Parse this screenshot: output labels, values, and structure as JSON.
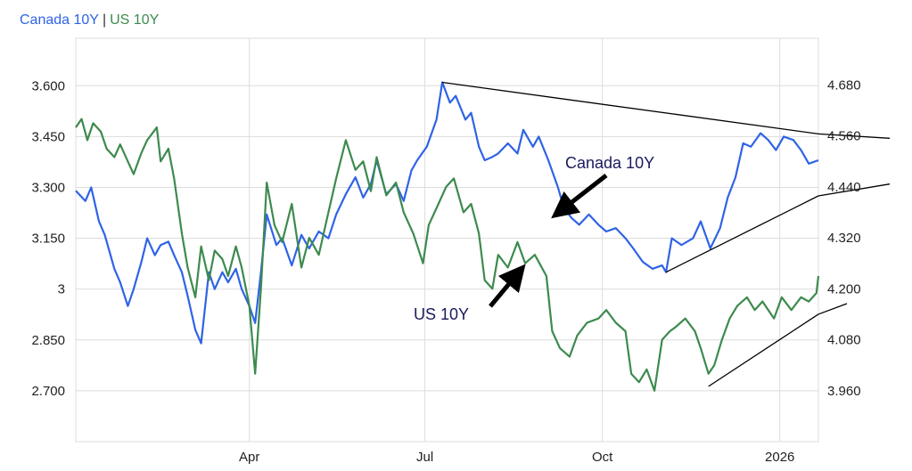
{
  "legend": {
    "canada_label": "Canada 10Y",
    "separator": "|",
    "us_label": "US 10Y"
  },
  "colors": {
    "canada": "#2f63e6",
    "us": "#3d8a4e",
    "grid": "#dcdcdc",
    "trend": "#000000"
  },
  "annotations": {
    "canada": "Canada 10Y",
    "us": "US 10Y"
  },
  "chart_data": {
    "type": "line",
    "x_ticks": [
      {
        "label": "Apr",
        "x": "2025-04-01"
      },
      {
        "label": "Jul",
        "x": "2025-07-01"
      },
      {
        "label": "Oct",
        "x": "2025-10-01"
      },
      {
        "label": "2026",
        "x": "2026-01-01"
      }
    ],
    "x_range": [
      "2025-01-01",
      "2026-01-21"
    ],
    "y_left_ticks": [
      "2.700",
      "2.850",
      "3",
      "3.150",
      "3.300",
      "3.450",
      "3.600"
    ],
    "y_left_range": [
      2.55,
      3.74
    ],
    "y_right_ticks": [
      "3.960",
      "4.080",
      "4.200",
      "4.320",
      "4.440",
      "4.560",
      "4.680"
    ],
    "y_right_range": [
      3.84,
      4.79
    ],
    "grid": true,
    "series": [
      {
        "name": "Canada 10Y",
        "axis": "left",
        "points": [
          [
            "2025-01-01",
            3.29
          ],
          [
            "2025-01-06",
            3.26
          ],
          [
            "2025-01-09",
            3.3
          ],
          [
            "2025-01-13",
            3.2
          ],
          [
            "2025-01-16",
            3.16
          ],
          [
            "2025-01-21",
            3.06
          ],
          [
            "2025-01-24",
            3.02
          ],
          [
            "2025-01-28",
            2.95
          ],
          [
            "2025-01-31",
            3.0
          ],
          [
            "2025-02-04",
            3.08
          ],
          [
            "2025-02-07",
            3.15
          ],
          [
            "2025-02-11",
            3.1
          ],
          [
            "2025-02-14",
            3.13
          ],
          [
            "2025-02-18",
            3.14
          ],
          [
            "2025-02-21",
            3.1
          ],
          [
            "2025-02-25",
            3.05
          ],
          [
            "2025-02-28",
            2.98
          ],
          [
            "2025-03-04",
            2.88
          ],
          [
            "2025-03-07",
            2.84
          ],
          [
            "2025-03-11",
            3.05
          ],
          [
            "2025-03-14",
            3.0
          ],
          [
            "2025-03-18",
            3.05
          ],
          [
            "2025-03-21",
            3.02
          ],
          [
            "2025-03-25",
            3.06
          ],
          [
            "2025-03-28",
            3.0
          ],
          [
            "2025-04-01",
            2.95
          ],
          [
            "2025-04-04",
            2.9
          ],
          [
            "2025-04-07",
            3.05
          ],
          [
            "2025-04-10",
            3.22
          ],
          [
            "2025-04-15",
            3.13
          ],
          [
            "2025-04-18",
            3.15
          ],
          [
            "2025-04-23",
            3.07
          ],
          [
            "2025-04-28",
            3.16
          ],
          [
            "2025-05-02",
            3.12
          ],
          [
            "2025-05-07",
            3.17
          ],
          [
            "2025-05-12",
            3.15
          ],
          [
            "2025-05-16",
            3.22
          ],
          [
            "2025-05-21",
            3.28
          ],
          [
            "2025-05-26",
            3.33
          ],
          [
            "2025-05-30",
            3.27
          ],
          [
            "2025-06-03",
            3.31
          ],
          [
            "2025-06-06",
            3.38
          ],
          [
            "2025-06-11",
            3.28
          ],
          [
            "2025-06-16",
            3.31
          ],
          [
            "2025-06-20",
            3.26
          ],
          [
            "2025-06-24",
            3.35
          ],
          [
            "2025-06-27",
            3.38
          ],
          [
            "2025-07-02",
            3.42
          ],
          [
            "2025-07-07",
            3.5
          ],
          [
            "2025-07-10",
            3.61
          ],
          [
            "2025-07-14",
            3.55
          ],
          [
            "2025-07-17",
            3.57
          ],
          [
            "2025-07-22",
            3.5
          ],
          [
            "2025-07-25",
            3.52
          ],
          [
            "2025-07-29",
            3.42
          ],
          [
            "2025-08-01",
            3.38
          ],
          [
            "2025-08-05",
            3.39
          ],
          [
            "2025-08-08",
            3.4
          ],
          [
            "2025-08-13",
            3.43
          ],
          [
            "2025-08-18",
            3.4
          ],
          [
            "2025-08-21",
            3.47
          ],
          [
            "2025-08-26",
            3.42
          ],
          [
            "2025-08-29",
            3.45
          ],
          [
            "2025-09-03",
            3.38
          ],
          [
            "2025-09-08",
            3.3
          ],
          [
            "2025-09-11",
            3.24
          ],
          [
            "2025-09-15",
            3.21
          ],
          [
            "2025-09-19",
            3.19
          ],
          [
            "2025-09-24",
            3.22
          ],
          [
            "2025-09-29",
            3.19
          ],
          [
            "2025-10-03",
            3.17
          ],
          [
            "2025-10-08",
            3.18
          ],
          [
            "2025-10-13",
            3.15
          ],
          [
            "2025-10-17",
            3.12
          ],
          [
            "2025-10-22",
            3.08
          ],
          [
            "2025-10-27",
            3.06
          ],
          [
            "2025-11-01",
            3.07
          ],
          [
            "2025-11-03",
            3.05
          ],
          [
            "2025-11-06",
            3.15
          ],
          [
            "2025-11-11",
            3.13
          ],
          [
            "2025-11-17",
            3.15
          ],
          [
            "2025-11-21",
            3.2
          ],
          [
            "2025-11-26",
            3.12
          ],
          [
            "2025-12-01",
            3.18
          ],
          [
            "2025-12-05",
            3.27
          ],
          [
            "2025-12-09",
            3.33
          ],
          [
            "2025-12-13",
            3.43
          ],
          [
            "2025-12-17",
            3.42
          ],
          [
            "2025-12-22",
            3.46
          ],
          [
            "2025-12-26",
            3.44
          ],
          [
            "2025-12-30",
            3.41
          ],
          [
            "2026-01-03",
            3.45
          ],
          [
            "2026-01-08",
            3.44
          ],
          [
            "2026-01-12",
            3.41
          ],
          [
            "2026-01-16",
            3.37
          ],
          [
            "2026-01-21",
            3.38
          ]
        ]
      },
      {
        "name": "US 10Y",
        "axis": "right",
        "points": [
          [
            "2025-01-01",
            4.58
          ],
          [
            "2025-01-04",
            4.6
          ],
          [
            "2025-01-07",
            4.55
          ],
          [
            "2025-01-10",
            4.59
          ],
          [
            "2025-01-14",
            4.57
          ],
          [
            "2025-01-17",
            4.53
          ],
          [
            "2025-01-21",
            4.51
          ],
          [
            "2025-01-24",
            4.54
          ],
          [
            "2025-01-28",
            4.5
          ],
          [
            "2025-01-31",
            4.47
          ],
          [
            "2025-02-04",
            4.52
          ],
          [
            "2025-02-07",
            4.55
          ],
          [
            "2025-02-12",
            4.58
          ],
          [
            "2025-02-14",
            4.5
          ],
          [
            "2025-02-18",
            4.53
          ],
          [
            "2025-02-21",
            4.46
          ],
          [
            "2025-02-25",
            4.33
          ],
          [
            "2025-02-28",
            4.25
          ],
          [
            "2025-03-04",
            4.18
          ],
          [
            "2025-03-07",
            4.3
          ],
          [
            "2025-03-11",
            4.22
          ],
          [
            "2025-03-14",
            4.29
          ],
          [
            "2025-03-18",
            4.27
          ],
          [
            "2025-03-21",
            4.23
          ],
          [
            "2025-03-25",
            4.3
          ],
          [
            "2025-03-28",
            4.25
          ],
          [
            "2025-04-01",
            4.16
          ],
          [
            "2025-04-04",
            4.0
          ],
          [
            "2025-04-07",
            4.2
          ],
          [
            "2025-04-10",
            4.45
          ],
          [
            "2025-04-14",
            4.35
          ],
          [
            "2025-04-18",
            4.31
          ],
          [
            "2025-04-23",
            4.4
          ],
          [
            "2025-04-28",
            4.25
          ],
          [
            "2025-05-02",
            4.32
          ],
          [
            "2025-05-07",
            4.28
          ],
          [
            "2025-05-12",
            4.38
          ],
          [
            "2025-05-16",
            4.46
          ],
          [
            "2025-05-21",
            4.55
          ],
          [
            "2025-05-26",
            4.48
          ],
          [
            "2025-05-30",
            4.5
          ],
          [
            "2025-06-03",
            4.43
          ],
          [
            "2025-06-06",
            4.51
          ],
          [
            "2025-06-11",
            4.42
          ],
          [
            "2025-06-16",
            4.45
          ],
          [
            "2025-06-20",
            4.38
          ],
          [
            "2025-06-25",
            4.33
          ],
          [
            "2025-06-30",
            4.26
          ],
          [
            "2025-07-03",
            4.35
          ],
          [
            "2025-07-08",
            4.4
          ],
          [
            "2025-07-12",
            4.44
          ],
          [
            "2025-07-16",
            4.46
          ],
          [
            "2025-07-21",
            4.38
          ],
          [
            "2025-07-25",
            4.4
          ],
          [
            "2025-07-29",
            4.33
          ],
          [
            "2025-08-01",
            4.22
          ],
          [
            "2025-08-05",
            4.2
          ],
          [
            "2025-08-08",
            4.28
          ],
          [
            "2025-08-13",
            4.25
          ],
          [
            "2025-08-18",
            4.31
          ],
          [
            "2025-08-22",
            4.26
          ],
          [
            "2025-08-27",
            4.28
          ],
          [
            "2025-09-02",
            4.23
          ],
          [
            "2025-09-05",
            4.1
          ],
          [
            "2025-09-09",
            4.06
          ],
          [
            "2025-09-14",
            4.04
          ],
          [
            "2025-09-18",
            4.09
          ],
          [
            "2025-09-23",
            4.12
          ],
          [
            "2025-09-29",
            4.13
          ],
          [
            "2025-10-03",
            4.15
          ],
          [
            "2025-10-08",
            4.12
          ],
          [
            "2025-10-13",
            4.1
          ],
          [
            "2025-10-16",
            4.0
          ],
          [
            "2025-10-20",
            3.98
          ],
          [
            "2025-10-24",
            4.01
          ],
          [
            "2025-10-28",
            3.96
          ],
          [
            "2025-11-01",
            4.08
          ],
          [
            "2025-11-05",
            4.1
          ],
          [
            "2025-11-08",
            4.11
          ],
          [
            "2025-11-13",
            4.13
          ],
          [
            "2025-11-18",
            4.1
          ],
          [
            "2025-11-21",
            4.06
          ],
          [
            "2025-11-25",
            4.0
          ],
          [
            "2025-11-28",
            4.02
          ],
          [
            "2025-12-02",
            4.08
          ],
          [
            "2025-12-06",
            4.13
          ],
          [
            "2025-12-10",
            4.16
          ],
          [
            "2025-12-15",
            4.18
          ],
          [
            "2025-12-19",
            4.15
          ],
          [
            "2025-12-23",
            4.17
          ],
          [
            "2025-12-29",
            4.13
          ],
          [
            "2026-01-02",
            4.18
          ],
          [
            "2026-01-07",
            4.15
          ],
          [
            "2026-01-12",
            4.18
          ],
          [
            "2026-01-16",
            4.17
          ],
          [
            "2026-01-20",
            4.19
          ],
          [
            "2026-01-21",
            4.23
          ]
        ]
      }
    ]
  }
}
